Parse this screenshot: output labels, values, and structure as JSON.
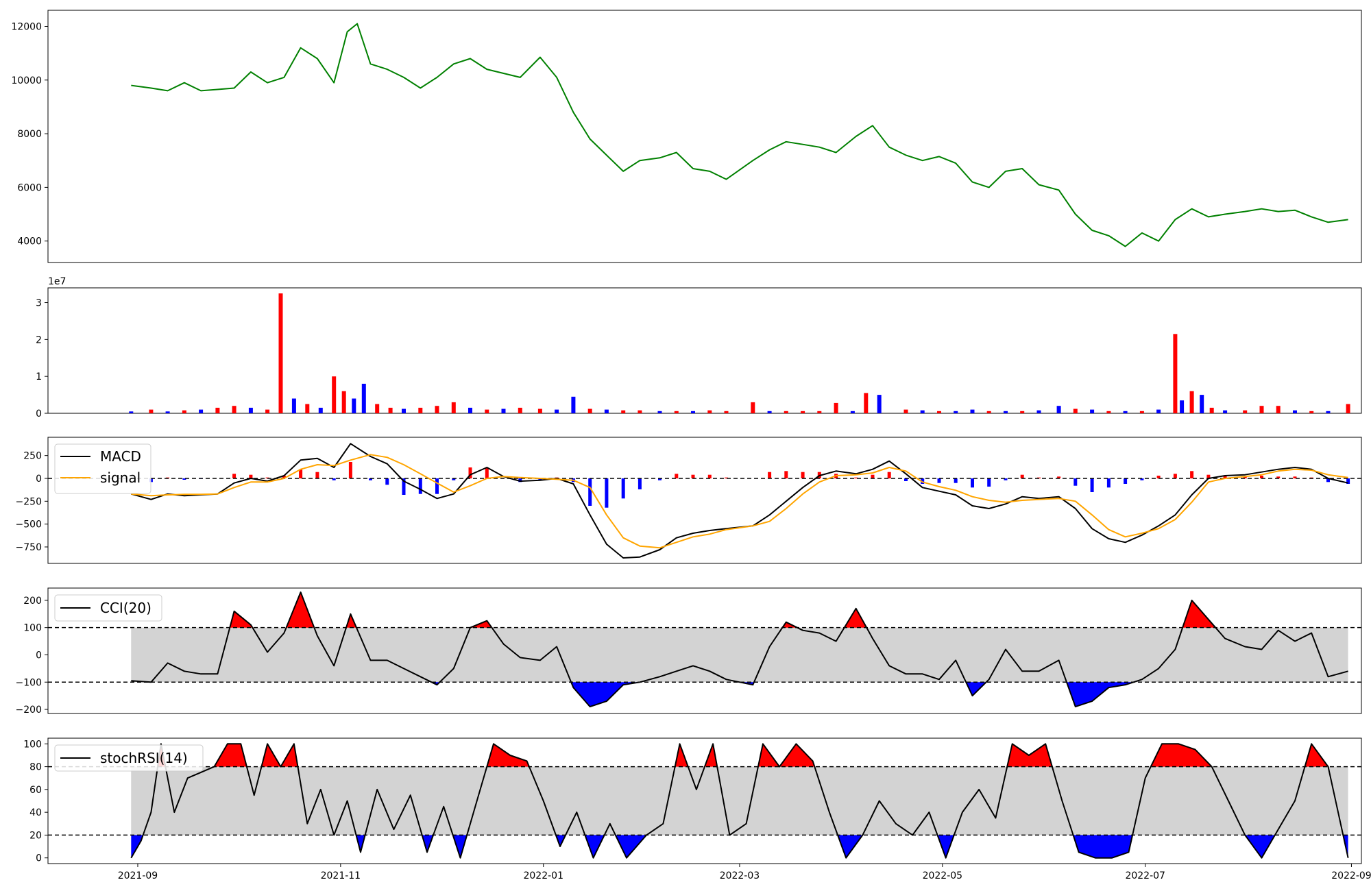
{
  "chart_data": [
    {
      "id": "price",
      "type": "line",
      "color": "#008000",
      "y_ticks": [
        "4000",
        "6000",
        "8000",
        "10000",
        "12000"
      ],
      "ylim": [
        3200,
        12600
      ],
      "x": [
        "2021-08-30",
        "2021-09-05",
        "2021-09-10",
        "2021-09-15",
        "2021-09-20",
        "2021-09-25",
        "2021-09-30",
        "2021-10-05",
        "2021-10-10",
        "2021-10-15",
        "2021-10-20",
        "2021-10-25",
        "2021-10-30",
        "2021-11-03",
        "2021-11-06",
        "2021-11-10",
        "2021-11-15",
        "2021-11-20",
        "2021-11-25",
        "2021-11-30",
        "2021-12-05",
        "2021-12-10",
        "2021-12-15",
        "2021-12-20",
        "2021-12-25",
        "2021-12-31",
        "2022-01-05",
        "2022-01-10",
        "2022-01-15",
        "2022-01-20",
        "2022-01-25",
        "2022-01-30",
        "2022-02-05",
        "2022-02-10",
        "2022-02-15",
        "2022-02-20",
        "2022-02-25",
        "2022-03-05",
        "2022-03-10",
        "2022-03-15",
        "2022-03-20",
        "2022-03-25",
        "2022-03-30",
        "2022-04-05",
        "2022-04-10",
        "2022-04-15",
        "2022-04-20",
        "2022-04-25",
        "2022-04-30",
        "2022-05-05",
        "2022-05-10",
        "2022-05-15",
        "2022-05-20",
        "2022-05-25",
        "2022-05-30",
        "2022-06-05",
        "2022-06-10",
        "2022-06-15",
        "2022-06-20",
        "2022-06-25",
        "2022-06-30",
        "2022-07-05",
        "2022-07-10",
        "2022-07-15",
        "2022-07-20",
        "2022-07-25",
        "2022-07-31",
        "2022-08-05",
        "2022-08-10",
        "2022-08-15",
        "2022-08-20",
        "2022-08-25",
        "2022-08-31"
      ],
      "values": [
        9800,
        9700,
        9600,
        9900,
        9600,
        9650,
        9700,
        10300,
        9900,
        10100,
        11200,
        10800,
        9900,
        11800,
        12100,
        10600,
        10400,
        10100,
        9700,
        10100,
        10600,
        10800,
        10400,
        10250,
        10100,
        10850,
        10100,
        8800,
        7800,
        7200,
        6600,
        7000,
        7100,
        7300,
        6700,
        6600,
        6300,
        7000,
        7400,
        7700,
        7600,
        7500,
        7300,
        7900,
        8300,
        7500,
        7200,
        7000,
        7150,
        6900,
        6200,
        6000,
        6600,
        6700,
        6100,
        5900,
        5000,
        4400,
        4200,
        3800,
        4300,
        4000,
        4800,
        5200,
        4900,
        5000,
        5100,
        5200,
        5100,
        5150,
        4900,
        4700,
        4800
      ]
    },
    {
      "id": "volume",
      "type": "bar",
      "y_ticks": [
        "0",
        "1",
        "2",
        "3"
      ],
      "y_multiplier": "1e7",
      "ylim": [
        0,
        3.4
      ],
      "colors": {
        "up": "#ff0000",
        "down": "#0000ff"
      },
      "x": [
        "2021-08-30",
        "2021-09-05",
        "2021-09-10",
        "2021-09-15",
        "2021-09-20",
        "2021-09-25",
        "2021-09-30",
        "2021-10-05",
        "2021-10-10",
        "2021-10-14",
        "2021-10-18",
        "2021-10-22",
        "2021-10-26",
        "2021-10-30",
        "2021-11-02",
        "2021-11-05",
        "2021-11-08",
        "2021-11-12",
        "2021-11-16",
        "2021-11-20",
        "2021-11-25",
        "2021-11-30",
        "2021-12-05",
        "2021-12-10",
        "2021-12-15",
        "2021-12-20",
        "2021-12-25",
        "2021-12-31",
        "2022-01-05",
        "2022-01-10",
        "2022-01-15",
        "2022-01-20",
        "2022-01-25",
        "2022-01-30",
        "2022-02-05",
        "2022-02-10",
        "2022-02-15",
        "2022-02-20",
        "2022-02-25",
        "2022-03-05",
        "2022-03-10",
        "2022-03-15",
        "2022-03-20",
        "2022-03-25",
        "2022-03-30",
        "2022-04-04",
        "2022-04-08",
        "2022-04-12",
        "2022-04-20",
        "2022-04-25",
        "2022-04-30",
        "2022-05-05",
        "2022-05-10",
        "2022-05-15",
        "2022-05-20",
        "2022-05-25",
        "2022-05-30",
        "2022-06-05",
        "2022-06-10",
        "2022-06-15",
        "2022-06-20",
        "2022-06-25",
        "2022-06-30",
        "2022-07-05",
        "2022-07-10",
        "2022-07-12",
        "2022-07-15",
        "2022-07-18",
        "2022-07-21",
        "2022-07-25",
        "2022-07-31",
        "2022-08-05",
        "2022-08-10",
        "2022-08-15",
        "2022-08-20",
        "2022-08-25",
        "2022-08-31"
      ],
      "values": [
        0.05,
        0.1,
        0.05,
        0.08,
        0.1,
        0.15,
        0.2,
        0.15,
        0.1,
        3.25,
        0.4,
        0.25,
        0.15,
        1.0,
        0.6,
        0.4,
        0.8,
        0.25,
        0.15,
        0.12,
        0.15,
        0.2,
        0.3,
        0.15,
        0.1,
        0.12,
        0.15,
        0.12,
        0.1,
        0.45,
        0.12,
        0.1,
        0.08,
        0.08,
        0.06,
        0.06,
        0.06,
        0.08,
        0.06,
        0.3,
        0.06,
        0.06,
        0.06,
        0.06,
        0.28,
        0.06,
        0.55,
        0.5,
        0.1,
        0.08,
        0.06,
        0.06,
        0.1,
        0.06,
        0.06,
        0.06,
        0.08,
        0.2,
        0.12,
        0.1,
        0.06,
        0.06,
        0.06,
        0.1,
        2.15,
        0.35,
        0.6,
        0.5,
        0.15,
        0.08,
        0.08,
        0.2,
        0.2,
        0.08,
        0.06,
        0.06,
        0.25
      ],
      "directions": [
        "down",
        "up",
        "down",
        "up",
        "down",
        "up",
        "up",
        "down",
        "up",
        "up",
        "down",
        "up",
        "down",
        "up",
        "up",
        "down",
        "down",
        "up",
        "up",
        "down",
        "up",
        "up",
        "up",
        "down",
        "up",
        "down",
        "up",
        "up",
        "down",
        "down",
        "up",
        "down",
        "up",
        "up",
        "down",
        "up",
        "down",
        "up",
        "up",
        "up",
        "down",
        "up",
        "up",
        "up",
        "up",
        "down",
        "up",
        "down",
        "up",
        "down",
        "up",
        "down",
        "down",
        "up",
        "down",
        "up",
        "down",
        "down",
        "up",
        "down",
        "up",
        "down",
        "up",
        "down",
        "up",
        "down",
        "up",
        "down",
        "up",
        "down",
        "up",
        "up",
        "up",
        "down",
        "up",
        "down",
        "up"
      ]
    },
    {
      "id": "macd",
      "type": "line",
      "y_ticks": [
        "−750",
        "−500",
        "−250",
        "0",
        "250"
      ],
      "ylim": [
        -930,
        450
      ],
      "legend": [
        "MACD",
        "signal"
      ],
      "colors": {
        "macd": "#000000",
        "signal": "#ffa500",
        "hist_up": "#ff0000",
        "hist_down": "#0000ff"
      },
      "x": [
        "2021-08-30",
        "2021-09-05",
        "2021-09-10",
        "2021-09-15",
        "2021-09-20",
        "2021-09-25",
        "2021-09-30",
        "2021-10-05",
        "2021-10-10",
        "2021-10-15",
        "2021-10-20",
        "2021-10-25",
        "2021-10-30",
        "2021-11-04",
        "2021-11-10",
        "2021-11-15",
        "2021-11-20",
        "2021-11-25",
        "2021-11-30",
        "2021-12-05",
        "2021-12-10",
        "2021-12-15",
        "2021-12-20",
        "2021-12-25",
        "2021-12-31",
        "2022-01-05",
        "2022-01-10",
        "2022-01-15",
        "2022-01-20",
        "2022-01-25",
        "2022-01-30",
        "2022-02-05",
        "2022-02-10",
        "2022-02-15",
        "2022-02-20",
        "2022-02-25",
        "2022-03-05",
        "2022-03-10",
        "2022-03-15",
        "2022-03-20",
        "2022-03-25",
        "2022-03-30",
        "2022-04-05",
        "2022-04-10",
        "2022-04-15",
        "2022-04-20",
        "2022-04-25",
        "2022-04-30",
        "2022-05-05",
        "2022-05-10",
        "2022-05-15",
        "2022-05-20",
        "2022-05-25",
        "2022-05-30",
        "2022-06-05",
        "2022-06-10",
        "2022-06-15",
        "2022-06-20",
        "2022-06-25",
        "2022-06-30",
        "2022-07-05",
        "2022-07-10",
        "2022-07-15",
        "2022-07-20",
        "2022-07-25",
        "2022-07-31",
        "2022-08-05",
        "2022-08-10",
        "2022-08-15",
        "2022-08-20",
        "2022-08-25",
        "2022-08-31"
      ],
      "macd": [
        -170,
        -230,
        -170,
        -190,
        -180,
        -170,
        -50,
        0,
        -30,
        30,
        200,
        220,
        120,
        380,
        240,
        160,
        -30,
        -120,
        -220,
        -170,
        40,
        120,
        20,
        -30,
        -20,
        0,
        -60,
        -400,
        -720,
        -870,
        -860,
        -780,
        -650,
        -600,
        -570,
        -550,
        -520,
        -400,
        -250,
        -100,
        30,
        80,
        50,
        100,
        190,
        50,
        -100,
        -140,
        -180,
        -300,
        -330,
        -280,
        -200,
        -220,
        -200,
        -330,
        -550,
        -660,
        -700,
        -620,
        -520,
        -400,
        -180,
        0,
        30,
        40,
        70,
        100,
        120,
        100,
        0,
        -50
      ],
      "signal": [
        -170,
        -190,
        -180,
        -175,
        -175,
        -170,
        -100,
        -40,
        -40,
        0,
        100,
        150,
        140,
        200,
        260,
        230,
        150,
        50,
        -50,
        -150,
        -80,
        0,
        20,
        10,
        0,
        -10,
        -20,
        -100,
        -400,
        -650,
        -740,
        -760,
        -700,
        -640,
        -610,
        -560,
        -520,
        -470,
        -330,
        -170,
        -40,
        30,
        40,
        60,
        120,
        80,
        -40,
        -90,
        -130,
        -200,
        -240,
        -260,
        -240,
        -230,
        -220,
        -250,
        -400,
        -560,
        -640,
        -600,
        -550,
        -450,
        -260,
        -40,
        0,
        20,
        40,
        80,
        100,
        90,
        40,
        10
      ],
      "hist": [
        0,
        -40,
        10,
        -15,
        -5,
        0,
        50,
        40,
        10,
        30,
        100,
        70,
        -20,
        180,
        -20,
        -70,
        -180,
        -170,
        -170,
        -20,
        120,
        120,
        0,
        -40,
        -20,
        10,
        -40,
        -300,
        -320,
        -220,
        -120,
        -20,
        50,
        40,
        40,
        10,
        0,
        70,
        80,
        70,
        70,
        50,
        10,
        40,
        70,
        -30,
        -60,
        -50,
        -50,
        -100,
        -90,
        -20,
        40,
        10,
        20,
        -80,
        -150,
        -100,
        -60,
        -20,
        30,
        50,
        80,
        40,
        30,
        20,
        30,
        20,
        20,
        10,
        -40,
        -60
      ]
    },
    {
      "id": "cci",
      "type": "line",
      "y_ticks": [
        "−200",
        "−100",
        "0",
        "100",
        "200"
      ],
      "ylim": [
        -215,
        245
      ],
      "legend": [
        "CCI(20)"
      ],
      "bands": [
        -100,
        100
      ],
      "colors": {
        "line": "#000000",
        "over": "#ff0000",
        "under": "#0000ff",
        "band": "#d3d3d3"
      },
      "x": [
        "2021-08-30",
        "2021-09-05",
        "2021-09-10",
        "2021-09-15",
        "2021-09-20",
        "2021-09-25",
        "2021-09-30",
        "2021-10-05",
        "2021-10-10",
        "2021-10-15",
        "2021-10-20",
        "2021-10-25",
        "2021-10-30",
        "2021-11-04",
        "2021-11-10",
        "2021-11-15",
        "2021-11-20",
        "2021-11-25",
        "2021-11-30",
        "2021-12-05",
        "2021-12-10",
        "2021-12-15",
        "2021-12-20",
        "2021-12-25",
        "2021-12-31",
        "2022-01-05",
        "2022-01-10",
        "2022-01-15",
        "2022-01-20",
        "2022-01-25",
        "2022-01-30",
        "2022-02-05",
        "2022-02-10",
        "2022-02-15",
        "2022-02-20",
        "2022-02-25",
        "2022-03-05",
        "2022-03-10",
        "2022-03-15",
        "2022-03-20",
        "2022-03-25",
        "2022-03-30",
        "2022-04-05",
        "2022-04-10",
        "2022-04-15",
        "2022-04-20",
        "2022-04-25",
        "2022-04-30",
        "2022-05-05",
        "2022-05-10",
        "2022-05-15",
        "2022-05-20",
        "2022-05-25",
        "2022-05-30",
        "2022-06-05",
        "2022-06-10",
        "2022-06-15",
        "2022-06-20",
        "2022-06-25",
        "2022-06-30",
        "2022-07-05",
        "2022-07-10",
        "2022-07-15",
        "2022-07-20",
        "2022-07-25",
        "2022-07-31",
        "2022-08-05",
        "2022-08-10",
        "2022-08-15",
        "2022-08-20",
        "2022-08-25",
        "2022-08-31"
      ],
      "values": [
        -95,
        -100,
        -30,
        -60,
        -70,
        -70,
        160,
        110,
        10,
        80,
        230,
        70,
        -40,
        150,
        -20,
        -20,
        -50,
        -80,
        -110,
        -50,
        100,
        125,
        40,
        -10,
        -20,
        30,
        -120,
        -190,
        -170,
        -110,
        -100,
        -80,
        -60,
        -40,
        -60,
        -90,
        -110,
        30,
        120,
        90,
        80,
        50,
        170,
        60,
        -40,
        -70,
        -70,
        -90,
        -20,
        -150,
        -90,
        20,
        -60,
        -60,
        -20,
        -190,
        -170,
        -120,
        -110,
        -90,
        -50,
        20,
        200,
        130,
        60,
        30,
        20,
        90,
        50,
        80,
        -80,
        -60
      ]
    },
    {
      "id": "stochrsi",
      "type": "line",
      "y_ticks": [
        "0",
        "20",
        "40",
        "60",
        "80",
        "100"
      ],
      "ylim": [
        -5,
        105
      ],
      "legend": [
        "stochRSI(14)"
      ],
      "bands": [
        20,
        80
      ],
      "colors": {
        "line": "#000000",
        "over": "#ff0000",
        "under": "#0000ff",
        "band": "#d3d3d3"
      },
      "x": [
        "2021-08-30",
        "2021-09-02",
        "2021-09-05",
        "2021-09-08",
        "2021-09-12",
        "2021-09-16",
        "2021-09-20",
        "2021-09-24",
        "2021-09-28",
        "2021-10-02",
        "2021-10-06",
        "2021-10-10",
        "2021-10-14",
        "2021-10-18",
        "2021-10-22",
        "2021-10-26",
        "2021-10-30",
        "2021-11-03",
        "2021-11-07",
        "2021-11-12",
        "2021-11-17",
        "2021-11-22",
        "2021-11-27",
        "2021-12-02",
        "2021-12-07",
        "2021-12-12",
        "2021-12-17",
        "2021-12-22",
        "2021-12-27",
        "2022-01-01",
        "2022-01-06",
        "2022-01-11",
        "2022-01-16",
        "2022-01-21",
        "2022-01-26",
        "2022-02-01",
        "2022-02-06",
        "2022-02-11",
        "2022-02-16",
        "2022-02-21",
        "2022-02-26",
        "2022-03-03",
        "2022-03-08",
        "2022-03-13",
        "2022-03-18",
        "2022-03-23",
        "2022-03-28",
        "2022-04-02",
        "2022-04-07",
        "2022-04-12",
        "2022-04-17",
        "2022-04-22",
        "2022-04-27",
        "2022-05-02",
        "2022-05-07",
        "2022-05-12",
        "2022-05-17",
        "2022-05-22",
        "2022-05-27",
        "2022-06-01",
        "2022-06-06",
        "2022-06-11",
        "2022-06-16",
        "2022-06-21",
        "2022-06-26",
        "2022-07-01",
        "2022-07-06",
        "2022-07-11",
        "2022-07-16",
        "2022-07-21",
        "2022-07-26",
        "2022-07-31",
        "2022-08-05",
        "2022-08-10",
        "2022-08-15",
        "2022-08-20",
        "2022-08-25",
        "2022-08-31"
      ],
      "values": [
        0,
        15,
        40,
        100,
        40,
        70,
        75,
        80,
        100,
        100,
        55,
        100,
        80,
        100,
        30,
        60,
        20,
        50,
        5,
        60,
        25,
        55,
        5,
        45,
        0,
        50,
        100,
        90,
        85,
        50,
        10,
        40,
        0,
        30,
        0,
        20,
        30,
        100,
        60,
        100,
        20,
        30,
        100,
        80,
        100,
        85,
        40,
        0,
        20,
        50,
        30,
        20,
        40,
        0,
        40,
        60,
        35,
        100,
        90,
        100,
        50,
        5,
        0,
        0,
        5,
        70,
        100,
        100,
        95,
        80,
        50,
        20,
        0,
        25,
        50,
        100,
        80,
        0
      ]
    }
  ],
  "x_ticks": [
    "2021-09",
    "2021-11",
    "2022-01",
    "2022-03",
    "2022-05",
    "2022-07",
    "2022-09"
  ]
}
